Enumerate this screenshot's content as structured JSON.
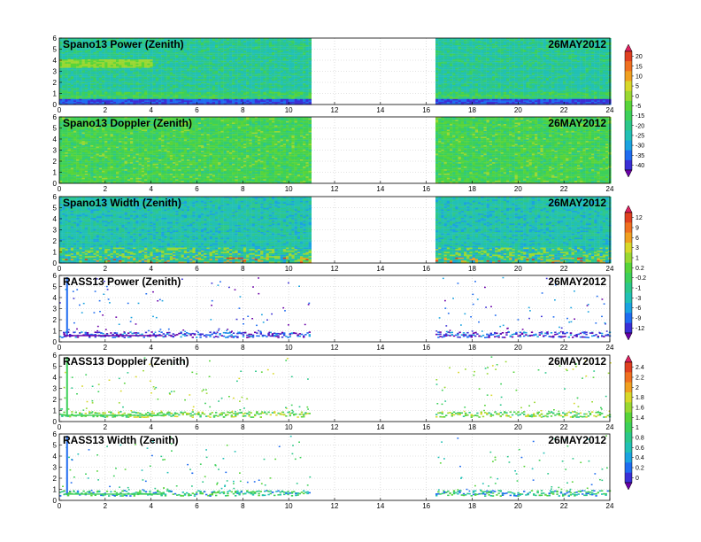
{
  "chart_data": [
    {
      "type": "heatmap",
      "title": "Spano13 Power (Zenith)",
      "date_label": "26MAY2012",
      "xlim": [
        0,
        24
      ],
      "ylim": [
        0,
        6
      ],
      "xticks": [
        "0",
        "2",
        "4",
        "6",
        "8",
        "10",
        "12",
        "14",
        "16",
        "18",
        "20",
        "22",
        "24"
      ],
      "yticks": [
        "0",
        "1",
        "2",
        "3",
        "4",
        "5",
        "6"
      ],
      "data_x_ranges": [
        [
          0,
          10.9
        ],
        [
          16.4,
          24
        ]
      ],
      "grid": true,
      "colorbar": [
        "20",
        "15",
        "10",
        "5",
        "0",
        "-5",
        "-15",
        "-20",
        "-25",
        "-30",
        "-35",
        "-40"
      ]
    },
    {
      "type": "heatmap",
      "title": "Spano13 Doppler (Zenith)",
      "date_label": "26MAY2012",
      "xlim": [
        0,
        24
      ],
      "ylim": [
        0,
        6
      ],
      "xticks": [
        "0",
        "2",
        "4",
        "6",
        "8",
        "10",
        "12",
        "14",
        "16",
        "18",
        "20",
        "22",
        "24"
      ],
      "yticks": [
        "0",
        "1",
        "2",
        "3",
        "4",
        "5",
        "6"
      ],
      "data_x_ranges": [
        [
          0,
          10.9
        ],
        [
          16.4,
          24
        ]
      ],
      "grid": true
    },
    {
      "type": "heatmap",
      "title": "Spano13 Width (Zenith)",
      "date_label": "26MAY2012",
      "xlim": [
        0,
        24
      ],
      "ylim": [
        0,
        6
      ],
      "xticks": [
        "0",
        "2",
        "4",
        "6",
        "8",
        "10",
        "12",
        "14",
        "16",
        "18",
        "20",
        "22",
        "24"
      ],
      "yticks": [
        "0",
        "1",
        "2",
        "3",
        "4",
        "5",
        "6"
      ],
      "data_x_ranges": [
        [
          0,
          10.9
        ],
        [
          16.4,
          24
        ]
      ],
      "grid": true,
      "colorbar": [
        "12",
        "9",
        "6",
        "3",
        "1",
        "0.2",
        "-0.2",
        "-1",
        "-3",
        "-6",
        "-9",
        "-12"
      ]
    },
    {
      "type": "heatmap",
      "title": "RASS13 Power (Zenith)",
      "date_label": "26MAY2012",
      "xlim": [
        0,
        24
      ],
      "ylim": [
        0,
        6
      ],
      "xticks": [
        "0",
        "2",
        "4",
        "6",
        "8",
        "10",
        "12",
        "14",
        "16",
        "18",
        "20",
        "22",
        "24"
      ],
      "yticks": [
        "0",
        "1",
        "2",
        "3",
        "4",
        "5",
        "6"
      ],
      "data_x_ranges": [
        [
          0,
          10.9
        ],
        [
          16.4,
          24
        ]
      ],
      "grid": true
    },
    {
      "type": "heatmap",
      "title": "RASS13 Doppler (Zenith)",
      "date_label": "26MAY2012",
      "xlim": [
        0,
        24
      ],
      "ylim": [
        0,
        6
      ],
      "xticks": [
        "0",
        "2",
        "4",
        "6",
        "8",
        "10",
        "12",
        "14",
        "16",
        "18",
        "20",
        "22",
        "24"
      ],
      "yticks": [
        "0",
        "1",
        "2",
        "3",
        "4",
        "5",
        "6"
      ],
      "data_x_ranges": [
        [
          0,
          10.9
        ],
        [
          16.4,
          24
        ]
      ],
      "grid": true,
      "colorbar": [
        "2.4",
        "2.2",
        "2",
        "1.8",
        "1.6",
        "1.4",
        "1",
        "0.8",
        "0.6",
        "0.4",
        "0.2",
        "0"
      ]
    },
    {
      "type": "heatmap",
      "title": "RASS13 Width (Zenith)",
      "date_label": "26MAY2012",
      "xlim": [
        0,
        24
      ],
      "ylim": [
        0,
        6
      ],
      "xticks": [
        "0",
        "2",
        "4",
        "6",
        "8",
        "10",
        "12",
        "14",
        "16",
        "18",
        "20",
        "22",
        "24"
      ],
      "yticks": [
        "0",
        "1",
        "2",
        "3",
        "4",
        "5",
        "6"
      ],
      "data_x_ranges": [
        [
          0,
          10.9
        ],
        [
          16.4,
          24
        ]
      ],
      "grid": true
    }
  ]
}
